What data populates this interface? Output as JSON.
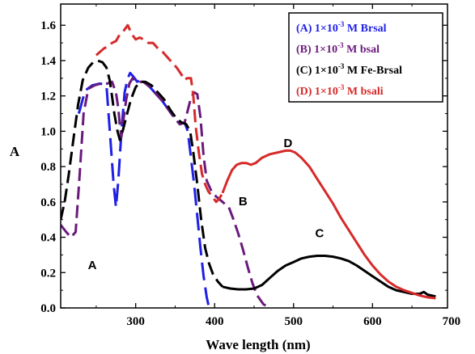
{
  "chart_data": {
    "type": "line",
    "xlabel": "Wave length (nm)",
    "ylabel": "A",
    "xlim": [
      205,
      695
    ],
    "ylim": [
      0,
      1.72
    ],
    "xticks": [
      300,
      400,
      500,
      600,
      700
    ],
    "yticks": [
      0.0,
      0.2,
      0.4,
      0.6,
      0.8,
      1.0,
      1.2,
      1.4,
      1.6
    ],
    "ytick_labels": [
      "0.0",
      "0.2",
      "0.4",
      "0.6",
      "0.8",
      "1.0",
      "1.2",
      "1.4",
      "1.6"
    ],
    "legend_position": "top-right",
    "series": [
      {
        "name": "(A) 1×10-3 M Brsal",
        "legend": {
          "prefix": "(A) 1×10",
          "sup": "-3",
          "suffix": " M Brsal"
        },
        "color": "#1f1fe6",
        "dash": "22,9",
        "curve_label": "A",
        "points": [
          [
            228,
            1.1
          ],
          [
            236,
            1.23
          ],
          [
            245,
            1.26
          ],
          [
            255,
            1.27
          ],
          [
            263,
            1.26
          ],
          [
            268,
            0.95
          ],
          [
            272,
            0.7
          ],
          [
            275,
            0.57
          ],
          [
            278,
            0.72
          ],
          [
            282,
            1.0
          ],
          [
            286,
            1.22
          ],
          [
            290,
            1.3
          ],
          [
            293,
            1.33
          ],
          [
            297,
            1.31
          ],
          [
            302,
            1.28
          ],
          [
            306,
            1.29
          ],
          [
            310,
            1.28
          ],
          [
            318,
            1.25
          ],
          [
            326,
            1.21
          ],
          [
            334,
            1.17
          ],
          [
            342,
            1.12
          ],
          [
            350,
            1.07
          ],
          [
            356,
            1.04
          ],
          [
            362,
            1.05
          ],
          [
            366,
            1.0
          ],
          [
            370,
            0.85
          ],
          [
            374,
            0.7
          ],
          [
            378,
            0.52
          ],
          [
            382,
            0.34
          ],
          [
            386,
            0.18
          ],
          [
            390,
            0.06
          ],
          [
            393,
            0.0
          ]
        ]
      },
      {
        "name": "(B) 1×10-3 M bsal",
        "legend": {
          "prefix": "(B) 1×10",
          "sup": "-3",
          "suffix": " M bsal"
        },
        "color": "#6a1a7c",
        "dash": "16,7",
        "curve_label": "B",
        "points": [
          [
            205,
            0.47
          ],
          [
            212,
            0.43
          ],
          [
            218,
            0.4
          ],
          [
            224,
            0.43
          ],
          [
            229,
            0.75
          ],
          [
            234,
            1.1
          ],
          [
            240,
            1.24
          ],
          [
            248,
            1.26
          ],
          [
            256,
            1.27
          ],
          [
            264,
            1.27
          ],
          [
            270,
            1.28
          ],
          [
            275,
            1.22
          ],
          [
            278,
            1.13
          ],
          [
            280,
            1.03
          ],
          [
            282,
            0.97
          ],
          [
            284,
            1.05
          ],
          [
            288,
            1.18
          ],
          [
            292,
            1.27
          ],
          [
            296,
            1.3
          ],
          [
            302,
            1.28
          ],
          [
            310,
            1.28
          ],
          [
            318,
            1.25
          ],
          [
            326,
            1.21
          ],
          [
            334,
            1.17
          ],
          [
            342,
            1.12
          ],
          [
            350,
            1.07
          ],
          [
            356,
            1.04
          ],
          [
            362,
            1.05
          ],
          [
            366,
            1.12
          ],
          [
            370,
            1.19
          ],
          [
            374,
            1.22
          ],
          [
            378,
            1.21
          ],
          [
            382,
            1.08
          ],
          [
            386,
            0.86
          ],
          [
            390,
            0.72
          ],
          [
            396,
            0.66
          ],
          [
            402,
            0.63
          ],
          [
            410,
            0.6
          ],
          [
            418,
            0.57
          ],
          [
            424,
            0.5
          ],
          [
            430,
            0.42
          ],
          [
            436,
            0.33
          ],
          [
            442,
            0.23
          ],
          [
            448,
            0.14
          ],
          [
            454,
            0.07
          ],
          [
            462,
            0.02
          ],
          [
            470,
            0.0
          ]
        ]
      },
      {
        "name": "(C) 1×10-3 M Fe-Brsal",
        "legend": {
          "prefix": "(C) 1×10",
          "sup": "-3",
          "suffix": " M Fe-Brsal"
        },
        "color": "#000000",
        "dash": "",
        "dash_until": 410,
        "dash_pattern": "16,7",
        "curve_label": "C",
        "points": [
          [
            205,
            0.5
          ],
          [
            210,
            0.6
          ],
          [
            215,
            0.75
          ],
          [
            221,
            0.95
          ],
          [
            227,
            1.15
          ],
          [
            233,
            1.29
          ],
          [
            240,
            1.36
          ],
          [
            246,
            1.39
          ],
          [
            252,
            1.4
          ],
          [
            258,
            1.39
          ],
          [
            263,
            1.36
          ],
          [
            267,
            1.29
          ],
          [
            270,
            1.2
          ],
          [
            273,
            1.1
          ],
          [
            277,
            1.0
          ],
          [
            280,
            0.95
          ],
          [
            284,
            1.01
          ],
          [
            288,
            1.08
          ],
          [
            294,
            1.18
          ],
          [
            300,
            1.25
          ],
          [
            306,
            1.28
          ],
          [
            312,
            1.28
          ],
          [
            320,
            1.26
          ],
          [
            328,
            1.22
          ],
          [
            336,
            1.18
          ],
          [
            344,
            1.12
          ],
          [
            352,
            1.07
          ],
          [
            358,
            1.05
          ],
          [
            364,
            1.04
          ],
          [
            369,
            1.0
          ],
          [
            373,
            0.88
          ],
          [
            378,
            0.7
          ],
          [
            383,
            0.5
          ],
          [
            388,
            0.34
          ],
          [
            393,
            0.25
          ],
          [
            398,
            0.19
          ],
          [
            404,
            0.15
          ],
          [
            410,
            0.12
          ],
          [
            420,
            0.11
          ],
          [
            430,
            0.105
          ],
          [
            440,
            0.105
          ],
          [
            450,
            0.11
          ],
          [
            460,
            0.13
          ],
          [
            470,
            0.17
          ],
          [
            480,
            0.21
          ],
          [
            490,
            0.24
          ],
          [
            500,
            0.26
          ],
          [
            510,
            0.28
          ],
          [
            520,
            0.29
          ],
          [
            530,
            0.295
          ],
          [
            540,
            0.295
          ],
          [
            550,
            0.29
          ],
          [
            560,
            0.28
          ],
          [
            570,
            0.265
          ],
          [
            580,
            0.24
          ],
          [
            590,
            0.21
          ],
          [
            600,
            0.18
          ],
          [
            610,
            0.15
          ],
          [
            620,
            0.12
          ],
          [
            630,
            0.1
          ],
          [
            640,
            0.09
          ],
          [
            650,
            0.08
          ],
          [
            660,
            0.08
          ],
          [
            665,
            0.09
          ],
          [
            670,
            0.075
          ],
          [
            675,
            0.07
          ],
          [
            680,
            0.065
          ]
        ]
      },
      {
        "name": "(D) 1×10-3 M bsali",
        "legend": {
          "prefix": "(D) 1×10",
          "sup": "-3",
          "suffix": " M bsali"
        },
        "color": "#d62a2a",
        "dash": "",
        "dash_until": 410,
        "dash_pattern": "16,7",
        "curve_label": "D",
        "points": [
          [
            250,
            1.43
          ],
          [
            255,
            1.45
          ],
          [
            260,
            1.47
          ],
          [
            265,
            1.48
          ],
          [
            270,
            1.5
          ],
          [
            275,
            1.51
          ],
          [
            280,
            1.55
          ],
          [
            285,
            1.57
          ],
          [
            290,
            1.6
          ],
          [
            295,
            1.55
          ],
          [
            300,
            1.52
          ],
          [
            305,
            1.53
          ],
          [
            310,
            1.52
          ],
          [
            316,
            1.5
          ],
          [
            322,
            1.5
          ],
          [
            328,
            1.47
          ],
          [
            334,
            1.45
          ],
          [
            340,
            1.42
          ],
          [
            346,
            1.39
          ],
          [
            352,
            1.36
          ],
          [
            358,
            1.32
          ],
          [
            362,
            1.29
          ],
          [
            365,
            1.3
          ],
          [
            370,
            1.3
          ],
          [
            373,
            1.2
          ],
          [
            376,
            1.03
          ],
          [
            380,
            0.88
          ],
          [
            384,
            0.76
          ],
          [
            388,
            0.7
          ],
          [
            392,
            0.66
          ],
          [
            397,
            0.63
          ],
          [
            402,
            0.6
          ],
          [
            406,
            0.62
          ],
          [
            410,
            0.65
          ],
          [
            416,
            0.72
          ],
          [
            422,
            0.78
          ],
          [
            428,
            0.81
          ],
          [
            434,
            0.82
          ],
          [
            440,
            0.82
          ],
          [
            446,
            0.81
          ],
          [
            452,
            0.82
          ],
          [
            460,
            0.85
          ],
          [
            470,
            0.87
          ],
          [
            480,
            0.88
          ],
          [
            490,
            0.89
          ],
          [
            496,
            0.89
          ],
          [
            502,
            0.88
          ],
          [
            510,
            0.85
          ],
          [
            520,
            0.8
          ],
          [
            530,
            0.73
          ],
          [
            540,
            0.66
          ],
          [
            550,
            0.59
          ],
          [
            560,
            0.51
          ],
          [
            570,
            0.44
          ],
          [
            580,
            0.37
          ],
          [
            590,
            0.3
          ],
          [
            600,
            0.24
          ],
          [
            610,
            0.19
          ],
          [
            620,
            0.15
          ],
          [
            630,
            0.12
          ],
          [
            640,
            0.1
          ],
          [
            650,
            0.085
          ],
          [
            660,
            0.07
          ],
          [
            670,
            0.06
          ],
          [
            680,
            0.055
          ]
        ]
      }
    ],
    "curve_label_positions": {
      "A": [
        245,
        0.22
      ],
      "B": [
        436,
        0.58
      ],
      "C": [
        533,
        0.4
      ],
      "D": [
        493,
        0.91
      ]
    }
  }
}
